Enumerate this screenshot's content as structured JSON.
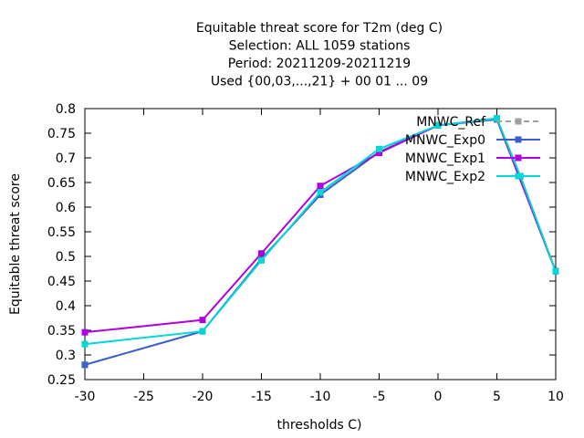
{
  "chart_data": {
    "type": "line",
    "title_lines": [
      "Equitable threat score  for T2m (deg C)",
      "Selection: ALL    1059 stations",
      "Period: 20211209-20211219",
      "Used {00,03,...,21} + 00 01 ... 09"
    ],
    "xlabel": "thresholds C)",
    "ylabel": "Equitable threat score",
    "xlim": [
      -30,
      10
    ],
    "ylim": [
      0.25,
      0.8
    ],
    "x_ticks": [
      -30,
      -25,
      -20,
      -15,
      -10,
      -5,
      0,
      5,
      10
    ],
    "y_ticks": [
      0.25,
      0.3,
      0.35,
      0.4,
      0.45,
      0.5,
      0.55,
      0.6,
      0.65,
      0.7,
      0.75,
      0.8
    ],
    "x_tick_labels": [
      "-30",
      "-25",
      "-20",
      "-15",
      "-10",
      "-5",
      "0",
      "5",
      "10"
    ],
    "y_tick_labels": [
      "0.25",
      "0.3",
      "0.35",
      "0.4",
      "0.45",
      "0.5",
      "0.55",
      "0.6",
      "0.65",
      "0.7",
      "0.75",
      "0.8"
    ],
    "grid": false,
    "legend_position": "top-right",
    "series": [
      {
        "name": "MNWC_Ref",
        "color": "#a0a0a0",
        "dashed": true,
        "x": [
          -30,
          -20,
          -15,
          -10,
          -5,
          0,
          5,
          10
        ],
        "values": [
          0.28,
          0.348,
          0.495,
          0.625,
          0.712,
          0.766,
          0.778,
          0.47
        ]
      },
      {
        "name": "MNWC_Exp0",
        "color": "#3b5fcd",
        "dashed": false,
        "x": [
          -30,
          -20,
          -15,
          -10,
          -5,
          0,
          5,
          10
        ],
        "values": [
          0.28,
          0.348,
          0.495,
          0.625,
          0.712,
          0.766,
          0.778,
          0.47
        ]
      },
      {
        "name": "MNWC_Exp1",
        "color": "#b000e0",
        "dashed": false,
        "x": [
          -30,
          -20,
          -15,
          -10,
          -5,
          0,
          5,
          10
        ],
        "values": [
          0.346,
          0.371,
          0.506,
          0.643,
          0.71,
          0.766,
          0.78,
          0.47
        ]
      },
      {
        "name": "MNWC_Exp2",
        "color": "#00d8d8",
        "dashed": false,
        "x": [
          -30,
          -20,
          -15,
          -10,
          -5,
          0,
          5,
          7,
          10
        ],
        "values": [
          0.322,
          0.348,
          0.492,
          0.63,
          0.718,
          0.766,
          0.78,
          0.663,
          0.47
        ]
      }
    ]
  }
}
